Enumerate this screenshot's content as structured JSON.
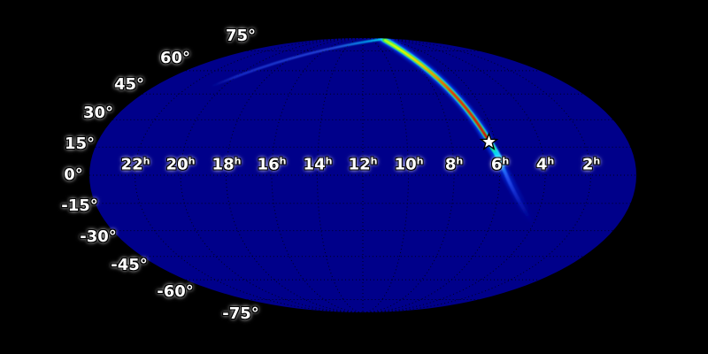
{
  "figure": {
    "type": "all-sky localization probability map",
    "projection": "mollweide",
    "background_color": "#000000",
    "sphere_fill_color": "#00008a",
    "grid_color": "#000000",
    "label_color": "#ffffff"
  },
  "dec_axis": {
    "labels": [
      "75°",
      "60°",
      "45°",
      "30°",
      "15°",
      "0°",
      "-15°",
      "-30°",
      "-45°",
      "-60°",
      "-75°"
    ],
    "degrees": [
      75,
      60,
      45,
      30,
      15,
      0,
      -15,
      -30,
      -45,
      -60,
      -75
    ]
  },
  "ra_axis": {
    "unit": "h",
    "labels": [
      "22",
      "20",
      "18",
      "16",
      "14",
      "12",
      "10",
      "8",
      "6",
      "4",
      "2"
    ],
    "hours": [
      22,
      20,
      18,
      16,
      14,
      12,
      10,
      8,
      6,
      4,
      2
    ]
  },
  "marker": {
    "symbol": "star",
    "fill_color": "#ffffff",
    "outline_color": "#000000",
    "ra_hours": 6.45,
    "dec_degrees": 17
  },
  "chart_data": {
    "type": "heatmap",
    "projection": "mollweide",
    "colormap": "jet",
    "title": "",
    "description": "All-sky map on black background; dark blue sphere with dotted graticule. A narrow jet-colormap probability arc runs from the north polar region down to the star marker near RA 6.5h, dec +17deg, with the red (peak) segment between dec ~45deg and ~17deg; a faint blue arc hugs the top edge toward RA ~18.5h, and a fading blue tail continues south of the marker.",
    "x_ticks_ra": [
      "22h",
      "20h",
      "18h",
      "16h",
      "14h",
      "12h",
      "10h",
      "8h",
      "6h",
      "4h",
      "2h"
    ],
    "y_ticks_dec": [
      "75°",
      "60°",
      "45°",
      "30°",
      "15°",
      "0°",
      "-15°",
      "-30°",
      "-45°",
      "-60°",
      "-75°"
    ],
    "grid": {
      "meridian_step_hours": 2,
      "parallel_step_degrees": 15,
      "style": "dotted"
    },
    "band_centerline_ra_dec": [
      [
        11.1,
        87
      ],
      [
        9.3,
        64
      ],
      [
        8.1,
        48
      ],
      [
        7.3,
        34
      ],
      [
        6.8,
        25
      ],
      [
        6.45,
        17.5
      ],
      [
        6.1,
        8
      ],
      [
        5.7,
        -1
      ],
      [
        5.2,
        -13
      ],
      [
        4.6,
        -25
      ]
    ],
    "band_peak_segment_ra_dec": [
      [
        7.9,
        44
      ],
      [
        6.45,
        17.5
      ]
    ],
    "polar_arc_ra_dec": [
      [
        18.7,
        50
      ],
      [
        16.3,
        65
      ],
      [
        13.9,
        77
      ],
      [
        11.3,
        86
      ]
    ],
    "marker_ra_dec": [
      6.45,
      17
    ]
  }
}
